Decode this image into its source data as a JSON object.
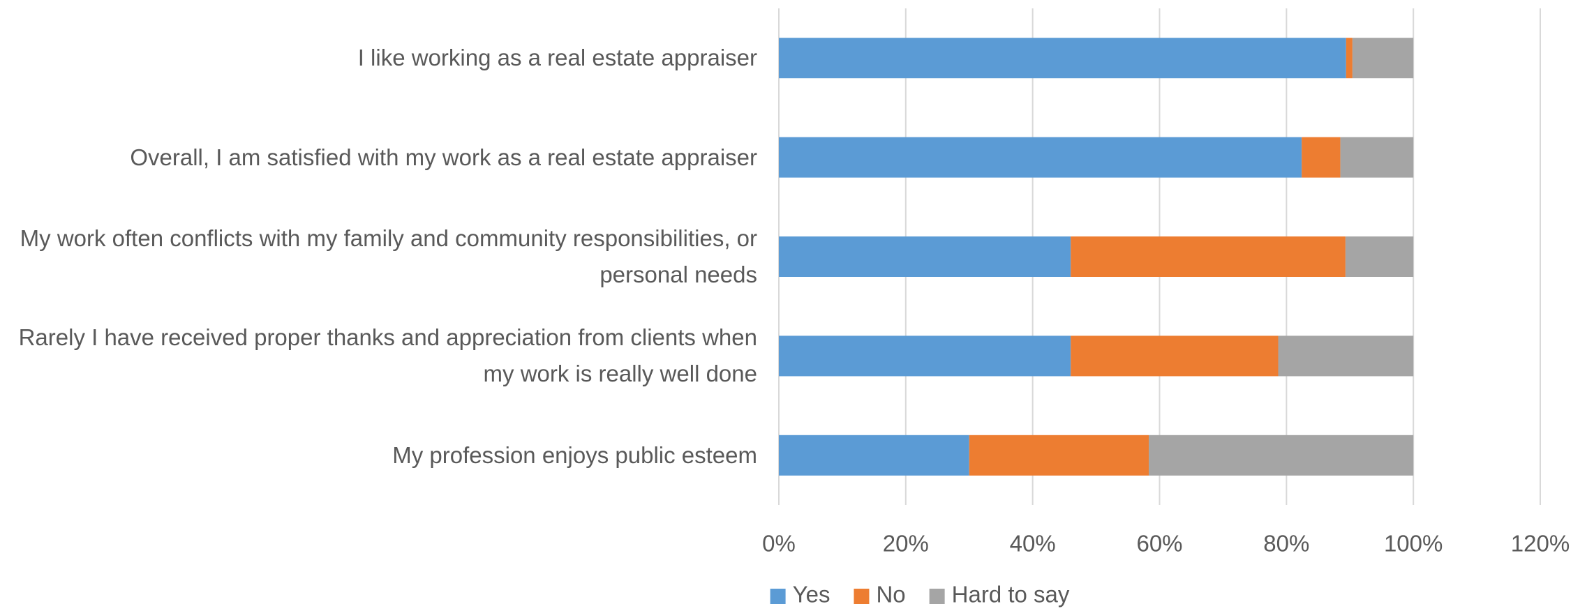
{
  "chart_data": {
    "type": "stacked_bar_horizontal",
    "categories": [
      "I like working as a real estate appraiser",
      "Overall, I am satisfied with my work as a real estate appraiser",
      "My work often conflicts with my family and community responsibilities, or personal needs",
      "Rarely I have received proper thanks and appreciation from clients when my work is really well done",
      "My profession enjoys public esteem"
    ],
    "series": [
      {
        "name": "Yes",
        "color": "#5b9bd5",
        "values": [
          89.4,
          82.4,
          46.0,
          46.0,
          30.0
        ]
      },
      {
        "name": "No",
        "color": "#ed7d31",
        "values": [
          1.0,
          6.1,
          43.3,
          32.7,
          28.3
        ]
      },
      {
        "name": "Hard to say",
        "color": "#a5a5a5",
        "values": [
          9.6,
          11.5,
          10.7,
          21.3,
          41.7
        ]
      }
    ],
    "xlim": [
      0,
      120
    ],
    "xticks": [
      {
        "value": 0,
        "label": "0%"
      },
      {
        "value": 20,
        "label": "20%"
      },
      {
        "value": 40,
        "label": "40%"
      },
      {
        "value": 60,
        "label": "60%"
      },
      {
        "value": 80,
        "label": "80%"
      },
      {
        "value": 100,
        "label": "100%"
      },
      {
        "value": 120,
        "label": "120%"
      }
    ],
    "grid": true,
    "legend": "bottom"
  }
}
